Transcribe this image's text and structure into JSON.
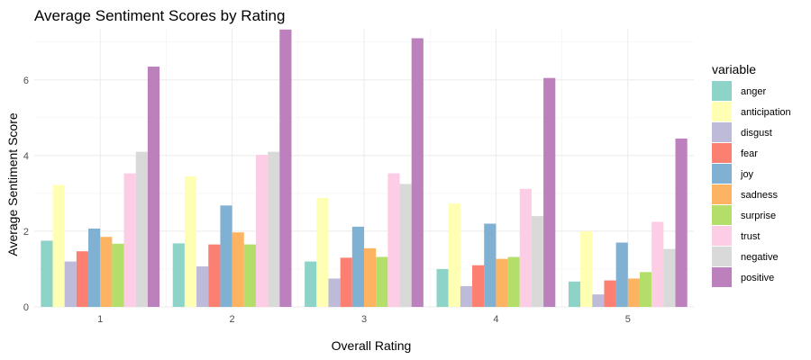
{
  "chart_data": {
    "type": "bar",
    "title": "Average Sentiment Scores by Rating",
    "xlabel": "Overall Rating",
    "ylabel": "Average Sentiment Score",
    "categories": [
      "1",
      "2",
      "3",
      "4",
      "5"
    ],
    "ylim": [
      0,
      7.35
    ],
    "yticks": [
      0,
      2,
      4,
      6
    ],
    "grid": true,
    "legend": {
      "title": "variable",
      "position": "right"
    },
    "series": [
      {
        "name": "anger",
        "color": "#8DD3C7",
        "values": [
          1.75,
          1.68,
          1.2,
          1.0,
          0.67
        ]
      },
      {
        "name": "anticipation",
        "color": "#FFFFB3",
        "values": [
          3.22,
          3.45,
          2.88,
          2.73,
          2.0
        ]
      },
      {
        "name": "disgust",
        "color": "#BEBADA",
        "values": [
          1.2,
          1.07,
          0.75,
          0.55,
          0.33
        ]
      },
      {
        "name": "fear",
        "color": "#FB8072",
        "values": [
          1.47,
          1.65,
          1.3,
          1.1,
          0.7
        ]
      },
      {
        "name": "joy",
        "color": "#80B1D3",
        "values": [
          2.07,
          2.68,
          2.12,
          2.2,
          1.7
        ]
      },
      {
        "name": "sadness",
        "color": "#FDB462",
        "values": [
          1.85,
          1.97,
          1.55,
          1.27,
          0.75
        ]
      },
      {
        "name": "surprise",
        "color": "#B3DE69",
        "values": [
          1.67,
          1.65,
          1.32,
          1.32,
          0.92
        ]
      },
      {
        "name": "trust",
        "color": "#FCCDE5",
        "values": [
          3.53,
          4.02,
          3.53,
          3.12,
          2.25
        ]
      },
      {
        "name": "negative",
        "color": "#D9D9D9",
        "values": [
          4.1,
          4.1,
          3.25,
          2.4,
          1.53
        ]
      },
      {
        "name": "positive",
        "color": "#BC80BD",
        "values": [
          6.35,
          7.33,
          7.1,
          6.05,
          4.45
        ]
      }
    ]
  }
}
